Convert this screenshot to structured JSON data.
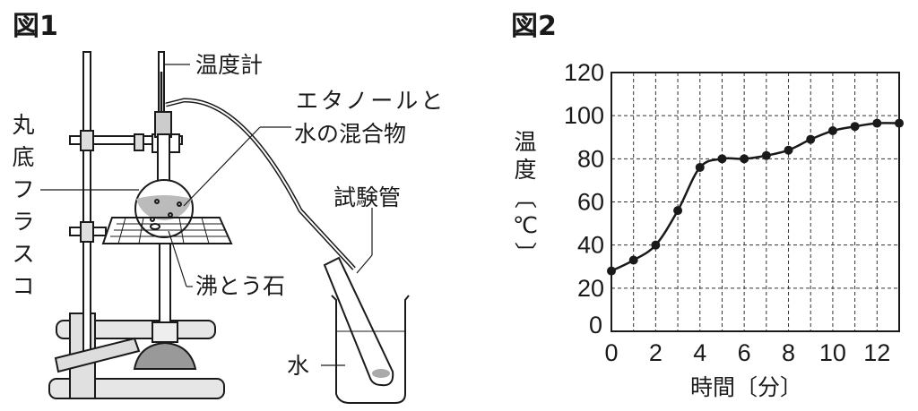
{
  "figure1": {
    "title": "図1",
    "labels": {
      "thermometer": "温度計",
      "mixture_line1": "エタノールと",
      "mixture_line2": "水の混合物",
      "flask": "丸底フラスコ",
      "test_tube": "試験管",
      "boiling_stone": "沸とう石",
      "water": "水"
    }
  },
  "figure2": {
    "title": "図2"
  },
  "chart_data": {
    "type": "line",
    "title": "",
    "xlabel": "時間〔分〕",
    "ylabel": "温度〔℃〕",
    "xlim": [
      0,
      13
    ],
    "ylim": [
      0,
      120
    ],
    "x_ticks": [
      0,
      2,
      4,
      6,
      8,
      10,
      12
    ],
    "y_ticks": [
      0,
      20,
      40,
      60,
      80,
      100,
      120
    ],
    "grid": true,
    "grid_style": "dashed",
    "x": [
      0,
      1,
      2,
      3,
      4,
      5,
      6,
      7,
      8,
      9,
      10,
      11,
      12,
      13
    ],
    "y": [
      28,
      33,
      40,
      56,
      76,
      80,
      80,
      81.5,
      84,
      89,
      93,
      95,
      96.5,
      96.5
    ],
    "line_color": "#1a1a1a"
  }
}
